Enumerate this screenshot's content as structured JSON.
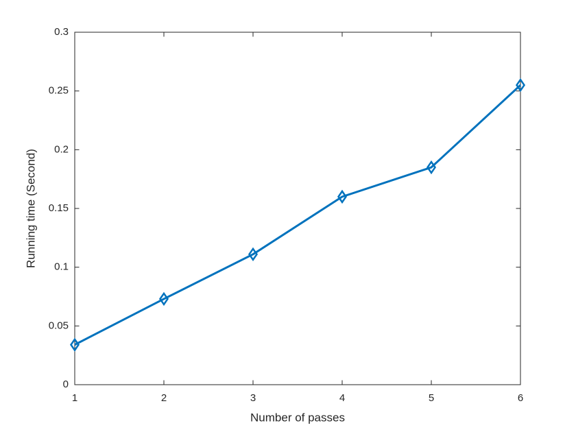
{
  "chart_data": {
    "type": "line",
    "x_label": "Number of passes",
    "y_label": "Running time (Second)",
    "x": [
      1,
      2,
      3,
      4,
      5,
      6
    ],
    "series": [
      {
        "name": "Running time",
        "color": "#0072bd",
        "values": [
          0.034,
          0.073,
          0.111,
          0.16,
          0.185,
          0.255
        ]
      }
    ],
    "xlim": [
      1,
      6
    ],
    "xticks": [
      1,
      2,
      3,
      4,
      5,
      6
    ],
    "ylim": [
      0,
      0.3
    ],
    "yticks": [
      0,
      0.05,
      0.1,
      0.15,
      0.2,
      0.25,
      0.3
    ],
    "grid": false,
    "marker": "diamond"
  }
}
